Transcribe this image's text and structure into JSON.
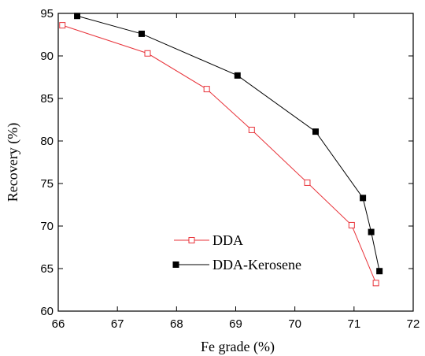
{
  "chart_data": {
    "type": "line",
    "title": "",
    "xlabel": "Fe grade (%)",
    "ylabel": "Recovery (%)",
    "xlim": [
      66,
      72
    ],
    "ylim": [
      60,
      95
    ],
    "xticks": [
      66,
      67,
      68,
      69,
      70,
      71,
      72
    ],
    "yticks": [
      60,
      65,
      70,
      75,
      80,
      85,
      90,
      95
    ],
    "xtick_labels": [
      "66",
      "67",
      "68",
      "69",
      "70",
      "71",
      "72"
    ],
    "ytick_labels": [
      "60",
      "65",
      "70",
      "75",
      "80",
      "85",
      "90",
      "95"
    ],
    "grid": false,
    "legend_position": "lower-left",
    "series": [
      {
        "name": "DDA",
        "color": "#e8333a",
        "marker": "open-square",
        "points": [
          {
            "x": 66.07,
            "y": 93.6
          },
          {
            "x": 67.51,
            "y": 90.3
          },
          {
            "x": 68.51,
            "y": 86.1
          },
          {
            "x": 69.27,
            "y": 81.3
          },
          {
            "x": 70.21,
            "y": 75.1
          },
          {
            "x": 70.96,
            "y": 70.1
          },
          {
            "x": 71.37,
            "y": 63.3
          }
        ]
      },
      {
        "name": "DDA-Kerosene",
        "color": "#000000",
        "marker": "filled-square",
        "points": [
          {
            "x": 66.32,
            "y": 94.7
          },
          {
            "x": 67.41,
            "y": 92.6
          },
          {
            "x": 69.03,
            "y": 87.7
          },
          {
            "x": 70.35,
            "y": 81.1
          },
          {
            "x": 71.15,
            "y": 73.3
          },
          {
            "x": 71.29,
            "y": 69.3
          },
          {
            "x": 71.43,
            "y": 64.7
          }
        ]
      }
    ]
  }
}
